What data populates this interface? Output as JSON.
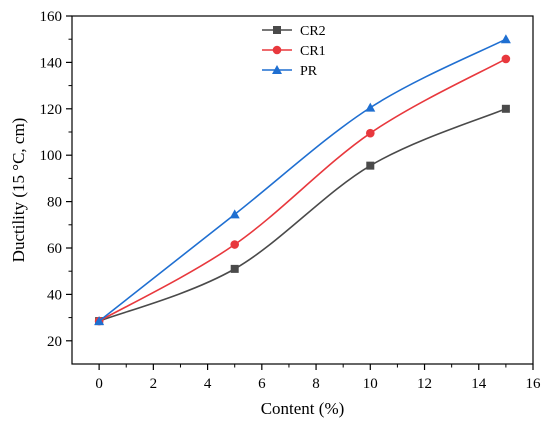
{
  "chart_data": {
    "type": "line",
    "title": "",
    "xlabel": "Content (%)",
    "ylabel": "Ductility (15 °C, cm)",
    "xlim": [
      -1,
      16
    ],
    "ylim": [
      10,
      160
    ],
    "xticks": [
      0,
      2,
      4,
      6,
      8,
      10,
      12,
      14,
      16
    ],
    "yticks": [
      20,
      40,
      60,
      80,
      100,
      120,
      140,
      160
    ],
    "x": [
      0,
      5,
      10,
      15
    ],
    "grid": false,
    "legend_position": "top-center",
    "series": [
      {
        "name": "CR2",
        "values": [
          28.5,
          51,
          95.5,
          120
        ],
        "color": "#4a4a4a",
        "marker": "square"
      },
      {
        "name": "CR1",
        "values": [
          28.5,
          61.5,
          109.5,
          141.5
        ],
        "color": "#e8383d",
        "marker": "circle"
      },
      {
        "name": "PR",
        "values": [
          28.5,
          74.5,
          120.5,
          150
        ],
        "color": "#1f6fd1",
        "marker": "triangle"
      }
    ]
  }
}
